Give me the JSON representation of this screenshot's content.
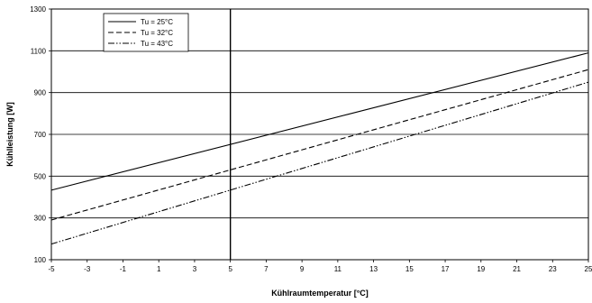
{
  "chart_data": {
    "type": "line",
    "xlabel": "Kühlraumtemperatur [°C]",
    "ylabel": "Kühlleistung [W]",
    "xlim": [
      -5,
      25
    ],
    "ylim": [
      100,
      1300
    ],
    "xticks": [
      "-5",
      "-3",
      "-1",
      "1",
      "3",
      "5",
      "7",
      "9",
      "11",
      "13",
      "15",
      "17",
      "19",
      "21",
      "23",
      "25"
    ],
    "yticks": [
      "100",
      "300",
      "500",
      "700",
      "900",
      "1100",
      "1300"
    ],
    "grid": "horizontal",
    "reference_line_x": 5,
    "legend_position": "top-left",
    "series": [
      {
        "name": "Tu = 25°C",
        "dash": "solid",
        "x": [
          -5,
          25
        ],
        "y": [
          433,
          1090
        ]
      },
      {
        "name": "Tu = 32°C",
        "dash": "dashed",
        "x": [
          -5,
          25
        ],
        "y": [
          290,
          1010
        ]
      },
      {
        "name": "Tu = 43°C",
        "dash": "dash-dot-dot",
        "x": [
          -5,
          25
        ],
        "y": [
          175,
          950
        ]
      }
    ]
  }
}
